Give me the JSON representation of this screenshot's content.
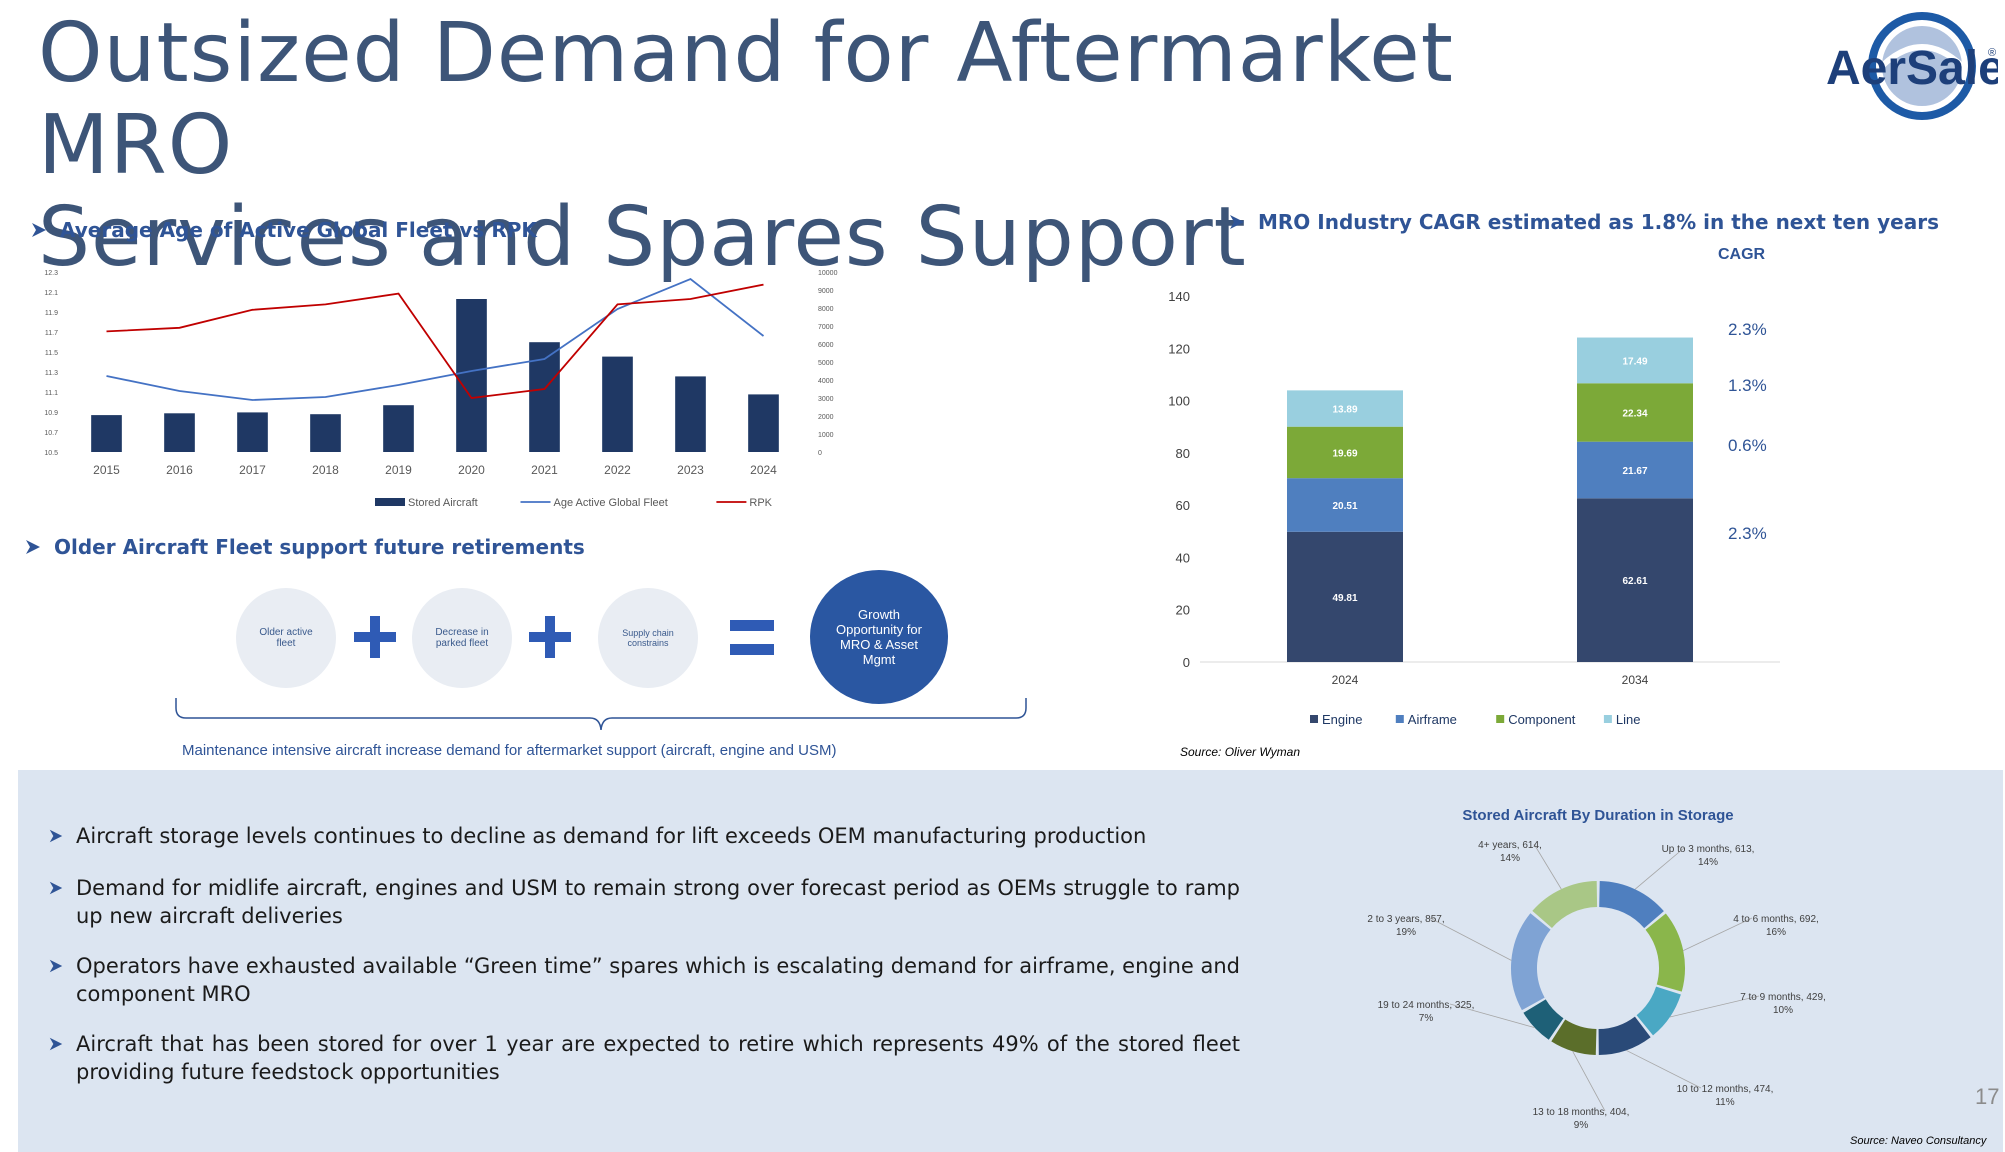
{
  "page": {
    "title_line1": "Outsized Demand for Aftermarket MRO",
    "title_line2": "Services and Spares Support",
    "logo_text": "AerSale",
    "logo_mark": "®",
    "page_number": "17",
    "colors": {
      "title": "#3d5578",
      "accent": "#2f5496",
      "panel": "#dce5f1"
    }
  },
  "section1": {
    "heading": "Average Age of Active Global Fleet vs RPK"
  },
  "section2": {
    "heading": "Older Aircraft Fleet support future retirements",
    "circles": [
      "Older active fleet",
      "Decrease in parked fleet",
      "Supply chain constrains"
    ],
    "result": "Growth Opportunity for MRO & Asset Mgmt",
    "caption": "Maintenance intensive aircraft increase demand for aftermarket support (aircraft, engine and USM)"
  },
  "section3": {
    "heading": "MRO Industry CAGR estimated as 1.8% in the next ten years",
    "cagr_label": "CAGR",
    "cagr_values": [
      "2.3%",
      "1.3%",
      "0.6%",
      "2.3%"
    ],
    "source": "Source: Oliver Wyman"
  },
  "bullets": [
    "Aircraft storage levels continues to decline as demand for lift exceeds OEM manufacturing production",
    "Demand for midlife aircraft, engines and USM to remain strong over forecast period as OEMs struggle to ramp up new aircraft deliveries",
    "Operators have exhausted available “Green time” spares which is escalating demand for airframe, engine and component MRO",
    "Aircraft that has been stored  for over 1 year are expected to retire which represents 49% of the stored fleet providing future feedstock opportunities"
  ],
  "donut_source": "Source: Naveo Consultancy",
  "chart_data": [
    {
      "type": "bar+line",
      "title": "Average Age of Active Global Fleet vs RPK",
      "categories": [
        "2015",
        "2016",
        "2017",
        "2018",
        "2019",
        "2020",
        "2021",
        "2022",
        "2023",
        "2024"
      ],
      "y_left_ticks": [
        "12.3",
        "12.1",
        "11.9",
        "11.7",
        "11.5",
        "11.3",
        "11.1",
        "10.9",
        "10.7",
        "10.5"
      ],
      "y_right_ticks": [
        "10000",
        "9000",
        "8000",
        "7000",
        "6000",
        "5000",
        "4000",
        "3000",
        "2000",
        "1000",
        "0"
      ],
      "ylim_left": [
        10.5,
        12.3
      ],
      "ylim_right": [
        0,
        10000
      ],
      "series": [
        {
          "name": "Stored Aircraft",
          "kind": "bar",
          "axis": "right",
          "color": "#1f3864",
          "values": [
            2050,
            2150,
            2200,
            2100,
            2600,
            8500,
            6100,
            5300,
            4200,
            3200
          ]
        },
        {
          "name": "Age Active Global Fleet",
          "kind": "line",
          "axis": "left",
          "color": "#4472c4",
          "values": [
            11.26,
            11.11,
            11.02,
            11.05,
            11.17,
            11.31,
            11.43,
            11.93,
            12.23,
            11.66
          ]
        },
        {
          "name": "RPK",
          "kind": "line",
          "axis": "right",
          "color": "#c00000",
          "values": [
            6700,
            6900,
            7900,
            8200,
            8800,
            3000,
            3500,
            8200,
            8500,
            9300
          ]
        }
      ]
    },
    {
      "type": "bar",
      "stacked": true,
      "title": "MRO Industry CAGR estimated as 1.8% in the next ten years",
      "categories": [
        "2024",
        "2034"
      ],
      "y_ticks": [
        "0",
        "20",
        "40",
        "60",
        "80",
        "100",
        "120",
        "140"
      ],
      "ylim": [
        0,
        140
      ],
      "series": [
        {
          "name": "Engine",
          "color": "#34476d",
          "values": [
            49.81,
            62.61
          ],
          "labels": [
            "49.81",
            "62.61"
          ]
        },
        {
          "name": "Airframe",
          "color": "#4f7fbf",
          "values": [
            20.51,
            21.67
          ],
          "labels": [
            "20.51",
            "21.67"
          ]
        },
        {
          "name": "Component",
          "color": "#7ca938",
          "values": [
            19.69,
            22.34
          ],
          "labels": [
            "19.69",
            "22.34"
          ]
        },
        {
          "name": "Line",
          "color": "#99cfdf",
          "values": [
            13.89,
            17.49
          ],
          "labels": [
            "13.89",
            "17.49"
          ]
        }
      ]
    },
    {
      "type": "pie",
      "donut": true,
      "title": "Stored Aircraft By Duration in Storage",
      "slices": [
        {
          "label": "Up to 3 months, 613, 14%",
          "value": 613,
          "color": "#4f7fbf"
        },
        {
          "label": "4 to 6 months, 692, 16%",
          "value": 692,
          "color": "#8ab64b"
        },
        {
          "label": "7 to 9 months, 429, 10%",
          "value": 429,
          "color": "#4aa8c4"
        },
        {
          "label": "10 to 12 months, 474, 11%",
          "value": 474,
          "color": "#2a4a78"
        },
        {
          "label": "13 to 18 months, 404, 9%",
          "value": 404,
          "color": "#5b6e2a"
        },
        {
          "label": "19 to 24 months, 325, 7%",
          "value": 325,
          "color": "#1e6077"
        },
        {
          "label": "2 to 3 years, 857, 19%",
          "value": 857,
          "color": "#7fa3d4"
        },
        {
          "label": "4+ years, 614, 14%",
          "value": 614,
          "color": "#a9c786"
        }
      ]
    }
  ]
}
